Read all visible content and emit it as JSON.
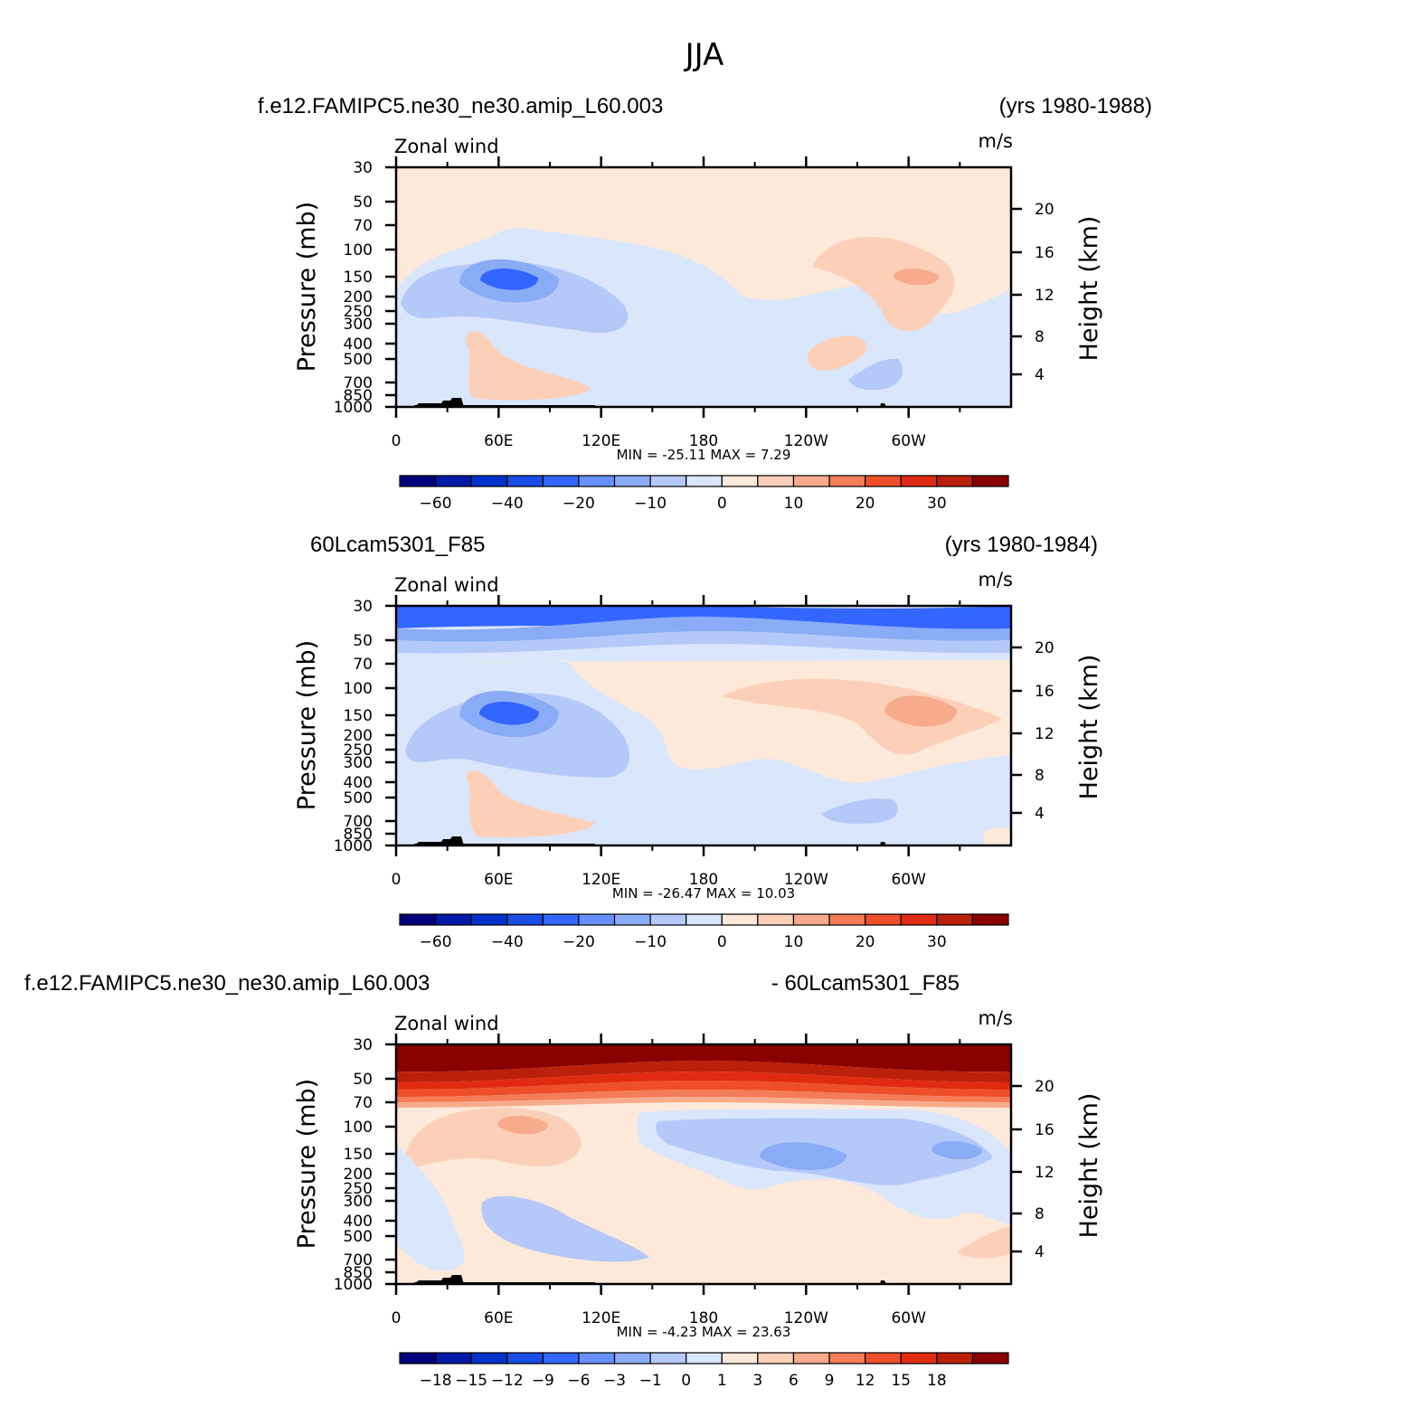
{
  "figure": {
    "title": "JJA"
  },
  "scales": {
    "abs": {
      "colors": [
        "#00007f",
        "#001aa8",
        "#0033cc",
        "#1a4de6",
        "#3366ff",
        "#6690ff",
        "#8aacf6",
        "#b4c9f9",
        "#d9e6fb",
        "#fde9d9",
        "#fcd0b8",
        "#f8ab8c",
        "#f47c57",
        "#ee4f2a",
        "#e02b12",
        "#bb200b",
        "#8b0000"
      ],
      "labels": [
        "-60",
        "-40",
        "-20",
        "-10",
        "0",
        "10",
        "20",
        "30"
      ],
      "label_positions": [
        1,
        3,
        5,
        7,
        9,
        11,
        13,
        15
      ]
    },
    "diff": {
      "colors": [
        "#00007f",
        "#001aa8",
        "#0033cc",
        "#1a4de6",
        "#3366ff",
        "#6690ff",
        "#8aacf6",
        "#b4c9f9",
        "#d9e6fb",
        "#fde9d9",
        "#fcd0b8",
        "#f8ab8c",
        "#f47c57",
        "#ee4f2a",
        "#e02b12",
        "#bb200b",
        "#8b0000"
      ],
      "labels": [
        "-18",
        "-15",
        "-12",
        "-9",
        "-6",
        "-3",
        "-1",
        "0",
        "1",
        "3",
        "6",
        "9",
        "12",
        "15",
        "18"
      ],
      "label_positions": [
        1,
        2,
        3,
        4,
        5,
        6,
        7,
        8,
        9,
        10,
        11,
        12,
        13,
        14,
        15
      ]
    }
  },
  "chart_data": [
    {
      "type": "heatmap",
      "header_left": "f.e12.FAMIPC5.ne30_ne30.amip_L60.003",
      "header_right": "(yrs 1980-1988)",
      "variable": "Zonal wind",
      "units": "m/s",
      "ylabel_left": "Pressure (mb)",
      "ylabel_right": "Height (km)",
      "x_ticks": [
        "0",
        "60E",
        "120E",
        "180",
        "120W",
        "60W"
      ],
      "y_ticks": [
        "30",
        "50",
        "70",
        "100",
        "150",
        "200",
        "250",
        "300",
        "400",
        "500",
        "700",
        "850",
        "1000"
      ],
      "height_ticks": [
        "20",
        "16",
        "12",
        "8",
        "4"
      ],
      "ylim": [
        1000,
        30
      ],
      "stats": "MIN =  -25.11   MAX =    7.29",
      "min": -25.11,
      "max": 7.29,
      "colorbar": "abs",
      "regions": [
        {
          "name": "upper-positive-band",
          "level": 9
        },
        {
          "name": "negative-easterly-jet",
          "level": 7
        },
        {
          "name": "jet-core",
          "level": 4
        },
        {
          "name": "east-pacific-westerly",
          "level": 10
        },
        {
          "name": "surface-westerly",
          "level": 10
        }
      ]
    },
    {
      "type": "heatmap",
      "header_left": "60Lcam5301_F85",
      "header_right": "(yrs 1980-1984)",
      "variable": "Zonal wind",
      "units": "m/s",
      "ylabel_left": "Pressure (mb)",
      "ylabel_right": "Height (km)",
      "x_ticks": [
        "0",
        "60E",
        "120E",
        "180",
        "120W",
        "60W"
      ],
      "y_ticks": [
        "30",
        "50",
        "70",
        "100",
        "150",
        "200",
        "250",
        "300",
        "400",
        "500",
        "700",
        "850",
        "1000"
      ],
      "height_ticks": [
        "20",
        "16",
        "12",
        "8",
        "4"
      ],
      "ylim": [
        1000,
        30
      ],
      "stats": "MIN =  -26.47   MAX =   10.03",
      "min": -26.47,
      "max": 10.03,
      "colorbar": "abs",
      "regions": [
        {
          "name": "stratospheric-easterlies",
          "level": 4
        },
        {
          "name": "negative-easterly-jet",
          "level": 7
        },
        {
          "name": "jet-core",
          "level": 4
        },
        {
          "name": "east-pacific-westerly",
          "level": 11
        },
        {
          "name": "surface-westerly",
          "level": 10
        }
      ]
    },
    {
      "type": "heatmap",
      "header_left": "f.e12.FAMIPC5.ne30_ne30.amip_L60.003",
      "header_right": "- 60Lcam5301_F85",
      "variable": "Zonal wind",
      "units": "m/s",
      "ylabel_left": "Pressure (mb)",
      "ylabel_right": "Height (km)",
      "x_ticks": [
        "0",
        "60E",
        "120E",
        "180",
        "120W",
        "60W"
      ],
      "y_ticks": [
        "30",
        "50",
        "70",
        "100",
        "150",
        "200",
        "250",
        "300",
        "400",
        "500",
        "700",
        "850",
        "1000"
      ],
      "height_ticks": [
        "20",
        "16",
        "12",
        "8",
        "4"
      ],
      "ylim": [
        1000,
        30
      ],
      "stats": "MIN =   -4.23   MAX =   23.63",
      "min": -4.23,
      "max": 23.63,
      "colorbar": "diff",
      "regions": [
        {
          "name": "stratospheric-difference",
          "level": 16
        },
        {
          "name": "tropospheric-positive",
          "level": 9
        },
        {
          "name": "pacific-negative",
          "level": 6
        },
        {
          "name": "lower-negative",
          "level": 7
        }
      ]
    }
  ]
}
